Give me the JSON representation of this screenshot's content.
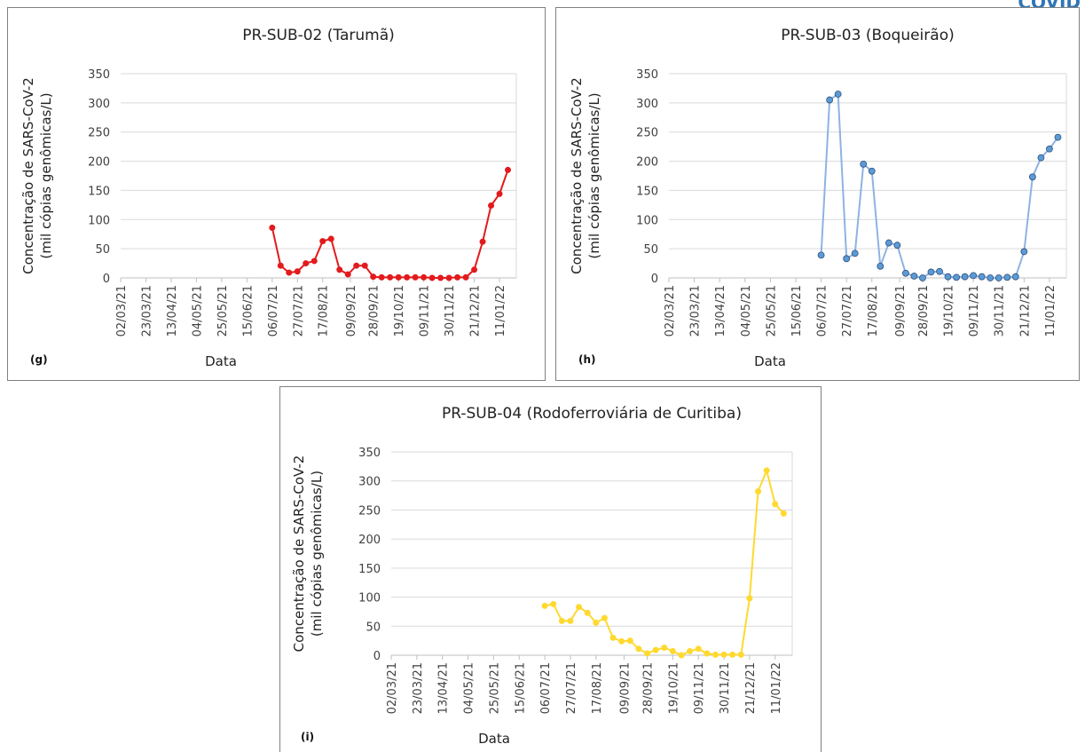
{
  "header": "COVID",
  "chart_data": [
    {
      "type": "line",
      "title": "PR-SUB-02 (Tarumã)",
      "panel": "(g)",
      "xlabel": "Data",
      "ylabel": [
        "Concentração de SARS-CoV-2",
        "(mil cópias genômicas/L)"
      ],
      "color": "#e31a1c",
      "x": [
        "06/07/21",
        "13/07/21",
        "20/07/21",
        "27/07/21",
        "03/08/21",
        "10/08/21",
        "17/08/21",
        "24/08/21",
        "31/08/21",
        "07/09/21",
        "14/09/21",
        "21/09/21",
        "28/09/21",
        "05/10/21",
        "12/10/21",
        "19/10/21",
        "26/10/21",
        "02/11/21",
        "09/11/21",
        "16/11/21",
        "23/11/21",
        "30/11/21",
        "07/12/21",
        "14/12/21",
        "21/12/21",
        "28/12/21",
        "04/01/22",
        "11/01/22",
        "18/01/22"
      ],
      "values": [
        86,
        21,
        9,
        11,
        25,
        29,
        63,
        67,
        14,
        6,
        21,
        21,
        2,
        1,
        1,
        1,
        1,
        1,
        1,
        0,
        0,
        0,
        1,
        1,
        14,
        62,
        124,
        144,
        185
      ],
      "xlim": [
        "02/03/21",
        "25/01/22"
      ],
      "xticks": [
        "02/03/21",
        "23/03/21",
        "13/04/21",
        "04/05/21",
        "25/05/21",
        "15/06/21",
        "06/07/21",
        "27/07/21",
        "17/08/21",
        "09/09/21",
        "28/09/21",
        "19/10/21",
        "09/11/21",
        "30/11/21",
        "21/12/21",
        "11/01/22"
      ],
      "ylim": [
        0,
        350
      ],
      "yticks": [
        0,
        50,
        100,
        150,
        200,
        250,
        300,
        350
      ],
      "grid": true
    },
    {
      "type": "line",
      "title": "PR-SUB-03 (Boqueirão)",
      "panel": "(h)",
      "xlabel": "Data",
      "ylabel": [
        "Concentração de SARS-CoV-2",
        "(mil cópias genômicas/L)"
      ],
      "color": "#8db3e2",
      "marker_color": "#5b9bd5",
      "x": [
        "06/07/21",
        "13/07/21",
        "20/07/21",
        "27/07/21",
        "03/08/21",
        "10/08/21",
        "17/08/21",
        "24/08/21",
        "31/08/21",
        "07/09/21",
        "14/09/21",
        "21/09/21",
        "28/09/21",
        "05/10/21",
        "12/10/21",
        "19/10/21",
        "26/10/21",
        "02/11/21",
        "09/11/21",
        "16/11/21",
        "23/11/21",
        "30/11/21",
        "07/12/21",
        "14/12/21",
        "21/12/21",
        "28/12/21",
        "04/01/22",
        "11/01/22",
        "18/01/22"
      ],
      "values": [
        39,
        305,
        315,
        33,
        42,
        195,
        183,
        20,
        60,
        56,
        8,
        3,
        0,
        10,
        11,
        2,
        1,
        2,
        4,
        2,
        0,
        0,
        1,
        2,
        45,
        173,
        206,
        221,
        241
      ],
      "xlim": [
        "02/03/21",
        "25/01/22"
      ],
      "xticks": [
        "02/03/21",
        "23/03/21",
        "13/04/21",
        "04/05/21",
        "25/05/21",
        "15/06/21",
        "06/07/21",
        "27/07/21",
        "17/08/21",
        "09/09/21",
        "28/09/21",
        "19/10/21",
        "09/11/21",
        "30/11/21",
        "21/12/21",
        "11/01/22"
      ],
      "ylim": [
        0,
        350
      ],
      "yticks": [
        0,
        50,
        100,
        150,
        200,
        250,
        300,
        350
      ],
      "grid": true
    },
    {
      "type": "line",
      "title": "PR-SUB-04 (Rodoferroviária de Curitiba)",
      "panel": "(i)",
      "xlabel": "Data",
      "ylabel": [
        "Concentração de SARS-CoV-2",
        "(mil cópias genômicas/L)"
      ],
      "color": "#ffd92f",
      "x": [
        "06/07/21",
        "13/07/21",
        "20/07/21",
        "27/07/21",
        "03/08/21",
        "10/08/21",
        "17/08/21",
        "24/08/21",
        "31/08/21",
        "07/09/21",
        "14/09/21",
        "21/09/21",
        "28/09/21",
        "05/10/21",
        "12/10/21",
        "19/10/21",
        "26/10/21",
        "02/11/21",
        "09/11/21",
        "16/11/21",
        "23/11/21",
        "30/11/21",
        "07/12/21",
        "14/12/21",
        "21/12/21",
        "28/12/21",
        "04/01/22",
        "11/01/22",
        "18/01/22"
      ],
      "values": [
        85,
        88,
        59,
        59,
        83,
        73,
        56,
        64,
        30,
        24,
        25,
        11,
        3,
        9,
        13,
        7,
        0,
        7,
        11,
        3,
        1,
        1,
        1,
        1,
        98,
        282,
        318,
        260,
        244
      ],
      "xlim": [
        "02/03/21",
        "25/01/22"
      ],
      "xticks": [
        "02/03/21",
        "23/03/21",
        "13/04/21",
        "04/05/21",
        "25/05/21",
        "15/06/21",
        "06/07/21",
        "27/07/21",
        "17/08/21",
        "09/09/21",
        "28/09/21",
        "19/10/21",
        "09/11/21",
        "30/11/21",
        "21/12/21",
        "11/01/22"
      ],
      "ylim": [
        0,
        350
      ],
      "yticks": [
        0,
        50,
        100,
        150,
        200,
        250,
        300,
        350
      ],
      "grid": true
    }
  ]
}
